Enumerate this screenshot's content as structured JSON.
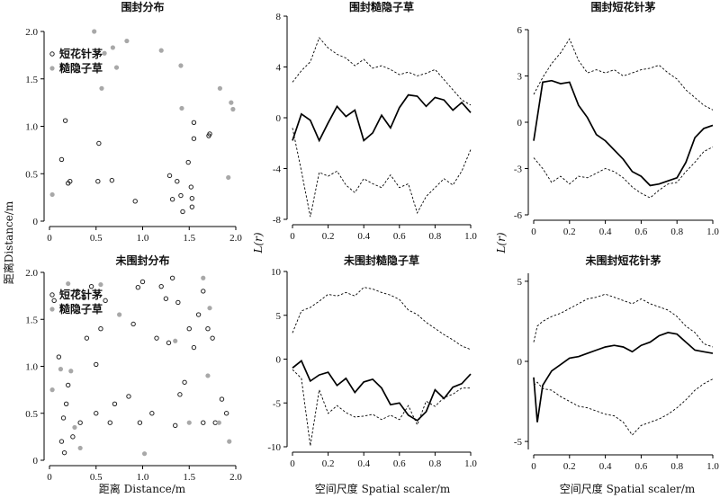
{
  "figure": {
    "ylabel_left": "距离Distance/m",
    "xlabel_left": "距离 Distance/m",
    "ylabel_middle": "L(r)",
    "ylabel_right": "L(r)",
    "xlabel_middle": "空间尺度 Spatial scaler/m",
    "xlabel_right": "空间尺度 Spatial scaler/m"
  },
  "colors": {
    "short_flower": "#222222",
    "rough_hidden": "#a8a8a8",
    "line": "#000000"
  },
  "chart_data": [
    {
      "id": "p1",
      "type": "scatter",
      "title": "围封分布",
      "xlim": [
        0,
        2.0
      ],
      "ylim": [
        0,
        2.0
      ],
      "xticks": [
        "0",
        "0.5",
        "1.0",
        "1.5",
        "2.0"
      ],
      "yticks": [
        "0",
        "0.5",
        "1.0",
        "1.5",
        "2.0"
      ],
      "legend": [
        "短花针茅",
        "糙隐子草"
      ],
      "series": [
        {
          "name": "短花针茅",
          "points": [
            [
              0.13,
              0.65
            ],
            [
              0.17,
              1.06
            ],
            [
              0.2,
              0.4
            ],
            [
              0.22,
              0.42
            ],
            [
              0.52,
              0.42
            ],
            [
              0.53,
              0.82
            ],
            [
              0.67,
              0.43
            ],
            [
              0.92,
              0.21
            ],
            [
              1.29,
              0.48
            ],
            [
              1.32,
              0.23
            ],
            [
              1.37,
              0.42
            ],
            [
              1.41,
              0.27
            ],
            [
              1.43,
              0.1
            ],
            [
              1.49,
              0.62
            ],
            [
              1.52,
              0.36
            ],
            [
              1.53,
              0.24
            ],
            [
              1.53,
              0.15
            ],
            [
              1.55,
              1.04
            ],
            [
              1.55,
              0.87
            ],
            [
              1.71,
              0.9
            ],
            [
              1.72,
              0.92
            ]
          ]
        },
        {
          "name": "糙隐子草",
          "points": [
            [
              0.03,
              0.28
            ],
            [
              0.48,
              2.0
            ],
            [
              0.56,
              1.4
            ],
            [
              0.59,
              1.77
            ],
            [
              0.68,
              1.83
            ],
            [
              0.72,
              1.62
            ],
            [
              0.83,
              1.9
            ],
            [
              1.2,
              1.8
            ],
            [
              1.41,
              1.64
            ],
            [
              1.42,
              1.19
            ],
            [
              1.83,
              1.4
            ],
            [
              1.92,
              0.46
            ],
            [
              1.95,
              1.25
            ],
            [
              1.97,
              1.18
            ]
          ]
        }
      ]
    },
    {
      "id": "p2",
      "type": "line",
      "title": "围封糙隐子草",
      "xlim": [
        0,
        1.0
      ],
      "ylim": [
        -8,
        8
      ],
      "xticks": [
        "0",
        "0.2",
        "0.4",
        "0.6",
        "0.8",
        "1.0"
      ],
      "yticks": [
        "-8",
        "-4",
        "0",
        "4",
        "8"
      ],
      "x": [
        0.0,
        0.05,
        0.1,
        0.15,
        0.2,
        0.25,
        0.3,
        0.35,
        0.4,
        0.45,
        0.5,
        0.55,
        0.6,
        0.65,
        0.7,
        0.75,
        0.8,
        0.85,
        0.9,
        0.95,
        1.0
      ],
      "series": [
        {
          "style": "solid",
          "values": [
            -1.8,
            0.3,
            -0.2,
            -1.8,
            -0.4,
            0.9,
            0.1,
            0.6,
            -1.8,
            -1.2,
            0.2,
            -0.8,
            0.8,
            1.8,
            1.7,
            0.9,
            1.6,
            1.4,
            0.6,
            1.2,
            0.4
          ]
        },
        {
          "style": "dashed",
          "values": [
            2.8,
            3.7,
            4.4,
            6.3,
            5.5,
            5.0,
            4.7,
            4.1,
            4.6,
            3.9,
            4.1,
            3.8,
            3.4,
            3.6,
            3.3,
            3.5,
            3.8,
            3.0,
            2.2,
            1.4,
            1.0
          ]
        },
        {
          "style": "dashed",
          "values": [
            -0.8,
            -4.2,
            -7.8,
            -4.3,
            -4.6,
            -4.2,
            -5.3,
            -5.9,
            -4.8,
            -5.2,
            -5.5,
            -4.5,
            -5.5,
            -5.2,
            -7.5,
            -6.2,
            -5.5,
            -4.8,
            -5.3,
            -4.2,
            -2.5
          ]
        }
      ]
    },
    {
      "id": "p3",
      "type": "line",
      "title": "围封短花针茅",
      "xlim": [
        0,
        1.0
      ],
      "ylim": [
        -6,
        6
      ],
      "xticks": [
        "0",
        "0.2",
        "0.4",
        "0.6",
        "0.8",
        "1.0"
      ],
      "yticks": [
        "-6",
        "-3",
        "0",
        "3",
        "6"
      ],
      "x": [
        0.0,
        0.05,
        0.1,
        0.15,
        0.2,
        0.25,
        0.3,
        0.35,
        0.4,
        0.45,
        0.5,
        0.55,
        0.6,
        0.65,
        0.7,
        0.75,
        0.8,
        0.85,
        0.9,
        0.95,
        1.0
      ],
      "series": [
        {
          "style": "solid",
          "values": [
            -1.2,
            2.6,
            2.7,
            2.5,
            2.6,
            1.1,
            0.3,
            -0.8,
            -1.2,
            -1.8,
            -2.4,
            -3.2,
            -3.5,
            -4.1,
            -4.0,
            -3.8,
            -3.6,
            -2.6,
            -1.0,
            -0.4,
            -0.2
          ]
        },
        {
          "style": "dashed",
          "values": [
            1.8,
            2.9,
            3.8,
            4.5,
            5.4,
            4.0,
            3.2,
            3.4,
            3.2,
            3.4,
            3.0,
            3.2,
            3.4,
            3.5,
            3.7,
            3.2,
            2.8,
            2.1,
            1.6,
            1.1,
            0.8
          ]
        },
        {
          "style": "dashed",
          "values": [
            -2.3,
            -3.0,
            -3.9,
            -3.5,
            -4.0,
            -3.5,
            -3.6,
            -3.3,
            -3.0,
            -3.2,
            -3.6,
            -4.2,
            -4.6,
            -4.9,
            -4.4,
            -4.0,
            -3.9,
            -3.2,
            -2.6,
            -1.9,
            -1.6
          ]
        }
      ]
    },
    {
      "id": "p4",
      "type": "scatter",
      "title": "未围封分布",
      "xlim": [
        0,
        2.0
      ],
      "ylim": [
        0,
        2.0
      ],
      "xticks": [
        "0",
        "0.5",
        "1.0",
        "1.5",
        "2.0"
      ],
      "yticks": [
        "0",
        "0.5",
        "1.0",
        "1.5",
        "2.0"
      ],
      "legend": [
        "短花针茅",
        "糙隐子草"
      ],
      "series": [
        {
          "name": "短花针茅",
          "points": [
            [
              0.05,
              1.7
            ],
            [
              0.1,
              1.1
            ],
            [
              0.13,
              0.2
            ],
            [
              0.15,
              0.45
            ],
            [
              0.16,
              0.08
            ],
            [
              0.18,
              0.6
            ],
            [
              0.2,
              0.8
            ],
            [
              0.25,
              0.25
            ],
            [
              0.3,
              1.8
            ],
            [
              0.33,
              0.4
            ],
            [
              0.37,
              1.73
            ],
            [
              0.4,
              1.3
            ],
            [
              0.45,
              1.85
            ],
            [
              0.5,
              1.02
            ],
            [
              0.5,
              0.5
            ],
            [
              0.55,
              1.4
            ],
            [
              0.6,
              1.7
            ],
            [
              0.65,
              0.4
            ],
            [
              0.7,
              0.6
            ],
            [
              0.85,
              0.68
            ],
            [
              0.9,
              1.45
            ],
            [
              0.95,
              1.84
            ],
            [
              0.97,
              0.4
            ],
            [
              1.0,
              1.9
            ],
            [
              1.1,
              0.5
            ],
            [
              1.15,
              1.3
            ],
            [
              1.2,
              1.85
            ],
            [
              1.25,
              1.72
            ],
            [
              1.28,
              1.25
            ],
            [
              1.32,
              1.94
            ],
            [
              1.35,
              0.37
            ],
            [
              1.38,
              1.68
            ],
            [
              1.4,
              0.7
            ],
            [
              1.45,
              0.83
            ],
            [
              1.5,
              1.4
            ],
            [
              1.55,
              1.2
            ],
            [
              1.6,
              1.55
            ],
            [
              1.65,
              0.4
            ],
            [
              1.65,
              1.8
            ],
            [
              1.7,
              1.4
            ],
            [
              1.75,
              1.3
            ],
            [
              1.78,
              0.4
            ],
            [
              1.85,
              0.65
            ],
            [
              1.9,
              0.5
            ]
          ]
        },
        {
          "name": "糙隐子草",
          "points": [
            [
              0.03,
              0.75
            ],
            [
              0.12,
              0.97
            ],
            [
              0.2,
              1.88
            ],
            [
              0.23,
              0.95
            ],
            [
              0.27,
              0.35
            ],
            [
              0.33,
              0.13
            ],
            [
              0.55,
              1.87
            ],
            [
              0.75,
              1.55
            ],
            [
              1.02,
              0.07
            ],
            [
              1.35,
              1.27
            ],
            [
              1.5,
              0.4
            ],
            [
              1.65,
              1.94
            ],
            [
              1.72,
              1.62
            ],
            [
              1.7,
              0.9
            ],
            [
              1.82,
              0.4
            ],
            [
              1.93,
              0.2
            ]
          ]
        }
      ]
    },
    {
      "id": "p5",
      "type": "line",
      "title": "未围封糙隐子草",
      "xlim": [
        0,
        1.0
      ],
      "ylim": [
        -10,
        10
      ],
      "xticks": [
        "0",
        "0.2",
        "0.4",
        "0.6",
        "0.8",
        "1.0"
      ],
      "yticks": [
        "-10",
        "-5",
        "0",
        "5",
        "10"
      ],
      "x": [
        0.0,
        0.05,
        0.1,
        0.15,
        0.2,
        0.25,
        0.3,
        0.35,
        0.4,
        0.45,
        0.5,
        0.55,
        0.6,
        0.65,
        0.7,
        0.75,
        0.8,
        0.85,
        0.9,
        0.95,
        1.0
      ],
      "series": [
        {
          "style": "solid",
          "values": [
            -1.0,
            -0.2,
            -2.5,
            -1.8,
            -1.5,
            -3.0,
            -2.2,
            -3.8,
            -2.6,
            -2.3,
            -3.3,
            -5.2,
            -5.0,
            -6.4,
            -7.0,
            -6.0,
            -3.5,
            -4.5,
            -3.2,
            -2.8,
            -1.7
          ]
        },
        {
          "style": "dashed",
          "values": [
            3.0,
            5.5,
            5.9,
            6.6,
            7.4,
            7.2,
            7.6,
            7.2,
            8.2,
            8.0,
            7.6,
            7.3,
            6.8,
            5.6,
            5.1,
            4.2,
            3.5,
            2.8,
            2.2,
            1.5,
            1.1
          ]
        },
        {
          "style": "dashed",
          "values": [
            -1.2,
            -2.2,
            -9.9,
            -3.5,
            -6.2,
            -5.3,
            -6.1,
            -6.6,
            -6.5,
            -6.3,
            -6.9,
            -6.4,
            -6.9,
            -5.3,
            -7.5,
            -4.8,
            -5.4,
            -4.4,
            -4.0,
            -3.3,
            -3.3
          ]
        }
      ]
    },
    {
      "id": "p6",
      "type": "line",
      "title": "未围封短花针茅",
      "xlim": [
        0,
        1.0
      ],
      "ylim": [
        -5.5,
        5.5
      ],
      "xticks": [
        "0",
        "0.2",
        "0.4",
        "0.6",
        "0.8",
        "1.0"
      ],
      "yticks": [
        "-5",
        "0",
        "5"
      ],
      "x": [
        0.0,
        0.02,
        0.05,
        0.1,
        0.15,
        0.2,
        0.25,
        0.3,
        0.35,
        0.4,
        0.45,
        0.5,
        0.55,
        0.6,
        0.65,
        0.7,
        0.75,
        0.8,
        0.85,
        0.9,
        0.95,
        1.0
      ],
      "series": [
        {
          "style": "solid",
          "values": [
            -1.0,
            -3.8,
            -1.5,
            -0.6,
            -0.2,
            0.2,
            0.3,
            0.5,
            0.7,
            0.9,
            1.0,
            0.9,
            0.6,
            1.0,
            1.2,
            1.6,
            1.8,
            1.7,
            1.2,
            0.7,
            0.6,
            0.5
          ]
        },
        {
          "style": "dashed",
          "values": [
            1.2,
            2.2,
            2.5,
            2.8,
            3.0,
            3.3,
            3.6,
            3.9,
            4.0,
            4.2,
            4.0,
            3.8,
            3.6,
            3.9,
            3.6,
            3.4,
            3.2,
            2.8,
            2.2,
            1.8,
            1.1,
            0.9
          ]
        },
        {
          "style": "dashed",
          "values": [
            -1.5,
            -1.3,
            -1.7,
            -1.8,
            -2.2,
            -2.5,
            -2.8,
            -2.9,
            -3.1,
            -3.3,
            -3.4,
            -3.8,
            -4.6,
            -4.0,
            -3.8,
            -3.6,
            -3.3,
            -2.9,
            -2.4,
            -1.8,
            -1.4,
            -1.1
          ]
        }
      ]
    }
  ]
}
